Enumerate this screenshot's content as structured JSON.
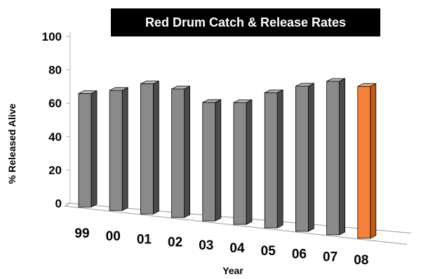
{
  "chart_data": {
    "type": "bar",
    "title": "Red Drum Catch & Release Rates",
    "xlabel": "Year",
    "ylabel": "% Released Alive",
    "categories": [
      "99",
      "00",
      "01",
      "02",
      "03",
      "04",
      "05",
      "06",
      "07",
      "08"
    ],
    "series": [
      {
        "values": [
          68,
          72,
          78,
          77,
          71,
          73,
          81,
          87,
          92,
          91
        ]
      }
    ],
    "highlight_index": 9,
    "ylim": [
      0,
      100
    ],
    "yticks": [
      0,
      20,
      40,
      60,
      80,
      100
    ],
    "grid": false,
    "legend": "none",
    "three_d": true,
    "colors": {
      "bar_face": "#8a8a8a",
      "bar_side": "#4a4a4a",
      "bar_top": "#b8b8b8",
      "highlight_face": "#f5813a",
      "highlight_side": "#c25a18",
      "highlight_top": "#ffb07a",
      "title_bg": "#000000",
      "title_text": "#ffffff",
      "floor": "#999999"
    }
  }
}
